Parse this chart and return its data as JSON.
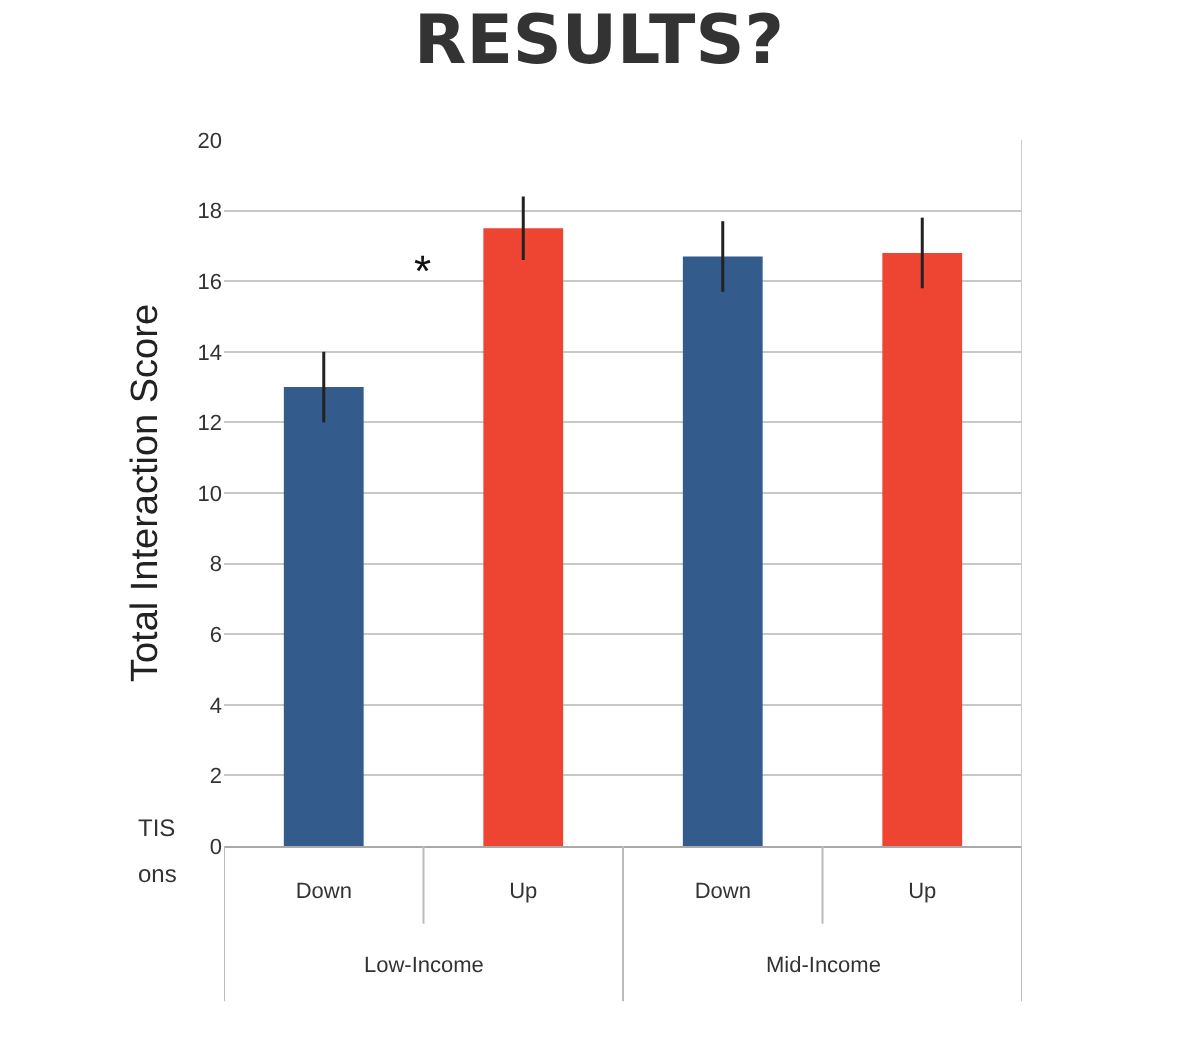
{
  "chart_data": {
    "type": "bar",
    "title": "RESULTS?",
    "ylabel": "Total Interaction Score",
    "categories": [
      "Down",
      "Up",
      "Down",
      "Up"
    ],
    "values": [
      13.0,
      17.5,
      16.7,
      16.8
    ],
    "colors": [
      "#335b8c",
      "#ee4533",
      "#335b8c",
      "#ee4533"
    ],
    "errors": [
      1.0,
      0.9,
      1.0,
      1.0
    ],
    "ylim": [
      0,
      20
    ],
    "yticks": [
      0,
      2,
      4,
      6,
      8,
      10,
      12,
      14,
      16,
      18,
      20
    ],
    "grid": "y",
    "annotations": [
      "*",
      "Low-Income",
      "Mid-Income",
      "TIS",
      "ons"
    ]
  }
}
